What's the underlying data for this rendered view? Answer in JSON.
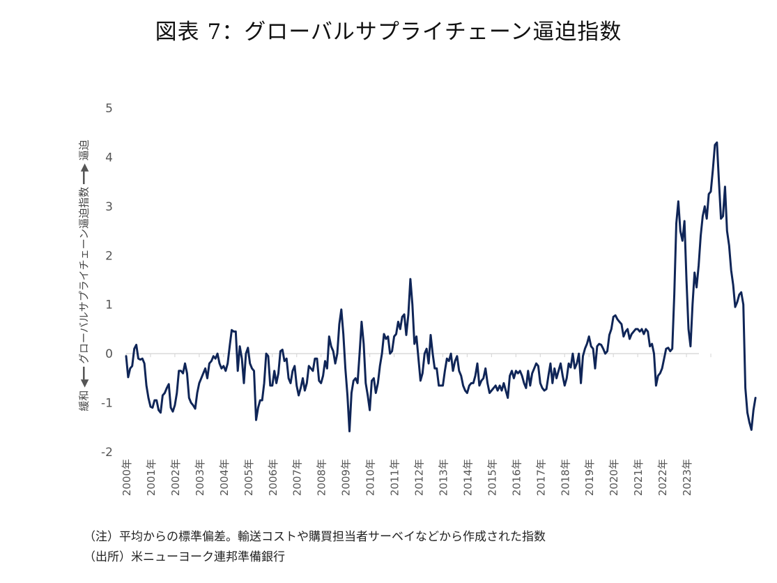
{
  "chart_data": {
    "type": "line",
    "title": "図表 7：グローバルサプライチェーン逼迫指数",
    "ylabel": {
      "low": "緩和",
      "main": "グローバルサプライチェーン逼迫指数",
      "high": "逼迫"
    },
    "xlabel": "",
    "ylim": [
      -2,
      5
    ],
    "yticks": [
      5,
      4,
      3,
      2,
      1,
      0,
      -1,
      -2
    ],
    "xticks": [
      "2000年",
      "2001年",
      "2002年",
      "2003年",
      "2004年",
      "2005年",
      "2006年",
      "2007年",
      "2008年",
      "2009年",
      "2010年",
      "2011年",
      "2012年",
      "2013年",
      "2014年",
      "2015年",
      "2016年",
      "2017年",
      "2018年",
      "2019年",
      "2020年",
      "2021年",
      "2022年",
      "2023年"
    ],
    "x_start": "2000-01",
    "x_frequency": "monthly",
    "grid": false,
    "zero_line": true,
    "line_color": "#0f2557",
    "series": [
      {
        "name": "グローバルサプライチェーン逼迫指数",
        "values": [
          -0.05,
          -0.48,
          -0.3,
          -0.25,
          0.1,
          0.18,
          -0.1,
          -0.12,
          -0.1,
          -0.2,
          -0.65,
          -0.9,
          -1.08,
          -1.1,
          -0.95,
          -0.95,
          -1.15,
          -1.2,
          -0.85,
          -0.8,
          -0.7,
          -0.62,
          -1.1,
          -1.18,
          -1.05,
          -0.8,
          -0.35,
          -0.35,
          -0.4,
          -0.2,
          -0.4,
          -0.9,
          -1.0,
          -1.05,
          -1.12,
          -0.8,
          -0.6,
          -0.5,
          -0.4,
          -0.3,
          -0.5,
          -0.2,
          -0.15,
          -0.05,
          -0.1,
          0.0,
          -0.2,
          -0.3,
          -0.25,
          -0.35,
          -0.2,
          0.15,
          0.48,
          0.45,
          0.45,
          -0.35,
          0.15,
          -0.1,
          -0.6,
          0.0,
          0.12,
          -0.2,
          -0.3,
          -0.35,
          -1.35,
          -1.1,
          -0.95,
          -0.95,
          -0.6,
          0.0,
          -0.05,
          -0.65,
          -0.65,
          -0.35,
          -0.6,
          -0.4,
          0.05,
          0.08,
          -0.15,
          -0.1,
          -0.5,
          -0.6,
          -0.35,
          -0.25,
          -0.65,
          -0.85,
          -0.7,
          -0.5,
          -0.75,
          -0.6,
          -0.25,
          -0.3,
          -0.35,
          -0.1,
          -0.1,
          -0.55,
          -0.6,
          -0.45,
          -0.15,
          -0.3,
          0.35,
          0.15,
          0.05,
          -0.2,
          0.0,
          0.6,
          0.9,
          0.4,
          -0.3,
          -0.85,
          -1.58,
          -0.8,
          -0.55,
          -0.5,
          -0.6,
          0.0,
          0.65,
          0.2,
          -0.6,
          -0.85,
          -1.15,
          -0.55,
          -0.5,
          -0.8,
          -0.6,
          -0.25,
          0.0,
          0.4,
          0.3,
          0.35,
          0.0,
          0.05,
          0.35,
          0.4,
          0.65,
          0.5,
          0.75,
          0.8,
          0.38,
          0.8,
          1.52,
          1.0,
          0.2,
          0.35,
          -0.1,
          -0.55,
          -0.4,
          0.0,
          0.1,
          -0.2,
          0.38,
          0.0,
          -0.3,
          -0.3,
          -0.65,
          -0.65,
          -0.65,
          -0.35,
          -0.1,
          -0.15,
          0.0,
          -0.35,
          -0.15,
          -0.05,
          -0.35,
          -0.45,
          -0.65,
          -0.75,
          -0.8,
          -0.65,
          -0.6,
          -0.6,
          -0.45,
          -0.2,
          -0.65,
          -0.55,
          -0.5,
          -0.3,
          -0.6,
          -0.8,
          -0.75,
          -0.7,
          -0.65,
          -0.75,
          -0.65,
          -0.75,
          -0.6,
          -0.75,
          -0.9,
          -0.45,
          -0.35,
          -0.5,
          -0.35,
          -0.4,
          -0.35,
          -0.45,
          -0.6,
          -0.7,
          -0.35,
          -0.65,
          -0.4,
          -0.3,
          -0.2,
          -0.25,
          -0.6,
          -0.7,
          -0.75,
          -0.72,
          -0.45,
          -0.2,
          -0.6,
          -0.3,
          -0.5,
          -0.35,
          -0.2,
          -0.45,
          -0.65,
          -0.5,
          -0.2,
          -0.28,
          0.0,
          -0.3,
          -0.2,
          0.0,
          -0.6,
          -0.05,
          0.1,
          0.2,
          0.35,
          0.15,
          0.1,
          -0.3,
          0.15,
          0.2,
          0.18,
          0.1,
          0.0,
          0.05,
          0.38,
          0.5,
          0.75,
          0.78,
          0.7,
          0.65,
          0.6,
          0.35,
          0.45,
          0.5,
          0.3,
          0.4,
          0.45,
          0.5,
          0.5,
          0.45,
          0.5,
          0.4,
          0.5,
          0.45,
          0.15,
          0.2,
          0.0,
          -0.65,
          -0.45,
          -0.4,
          -0.3,
          -0.1,
          0.1,
          0.12,
          0.05,
          0.1,
          1.2,
          2.65,
          3.1,
          2.5,
          2.3,
          2.7,
          1.5,
          0.5,
          0.15,
          1.0,
          1.65,
          1.35,
          1.8,
          2.4,
          2.8,
          3.0,
          2.75,
          3.25,
          3.3,
          3.75,
          4.25,
          4.3,
          3.5,
          2.75,
          2.8,
          3.4,
          2.5,
          2.2,
          1.7,
          1.4,
          0.95,
          1.05,
          1.2,
          1.25,
          1.0,
          -0.7,
          -1.2,
          -1.4,
          -1.55,
          -1.15,
          -0.9
        ]
      }
    ],
    "notes": [
      "（注）平均からの標準偏差。輸送コストや購買担当者サーベイなどから作成された指数",
      "（出所）米ニューヨーク連邦準備銀行"
    ]
  }
}
